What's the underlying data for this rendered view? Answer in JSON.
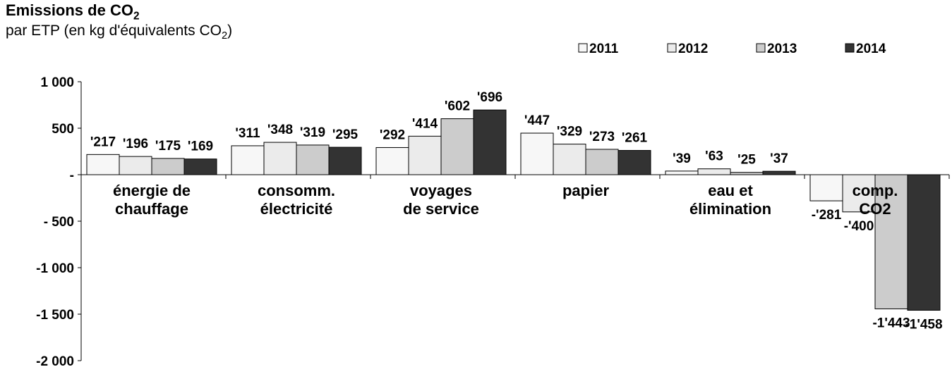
{
  "chart_data": {
    "type": "bar",
    "title": {
      "text": "Emissions de CO",
      "sub": "2"
    },
    "subtitle": {
      "text": "par ETP (en kg d'équivalents CO",
      "sub": "2",
      "suffix": ")"
    },
    "categories": [
      [
        "énergie de",
        "chauffage"
      ],
      [
        "consomm.",
        "électricité"
      ],
      [
        "voyages",
        "de service"
      ],
      [
        "papier"
      ],
      [
        "eau et",
        "élimination"
      ],
      [
        "comp.",
        "CO2"
      ]
    ],
    "series": [
      {
        "name": "2011",
        "color": "#f7f7f7",
        "values": [
          217,
          311,
          292,
          447,
          39,
          -281
        ],
        "labels": [
          "'217",
          "'311",
          "'292",
          "'447",
          "'39",
          "-'281"
        ]
      },
      {
        "name": "2012",
        "color": "#ebebeb",
        "values": [
          196,
          348,
          414,
          329,
          63,
          -400
        ],
        "labels": [
          "'196",
          "'348",
          "'414",
          "'329",
          "'63",
          "-'400"
        ]
      },
      {
        "name": "2013",
        "color": "#cccccc",
        "values": [
          175,
          319,
          602,
          273,
          25,
          -1443
        ],
        "labels": [
          "'175",
          "'319",
          "'602",
          "'273",
          "'25",
          "-1'443"
        ]
      },
      {
        "name": "2014",
        "color": "#333333",
        "values": [
          169,
          295,
          696,
          261,
          37,
          -1458
        ],
        "labels": [
          "'169",
          "'295",
          "'696",
          "'261",
          "'37",
          "-1'458"
        ]
      }
    ],
    "ylim": [
      -2000,
      1000
    ],
    "yticks": [
      1000,
      500,
      0,
      -500,
      -1000,
      -1500,
      -2000
    ],
    "ytick_labels": [
      "1 000",
      "500",
      "-",
      "- 500",
      "-1 000",
      "-1 500",
      "-2 000"
    ],
    "legend_position": "top-right",
    "grid": false
  }
}
